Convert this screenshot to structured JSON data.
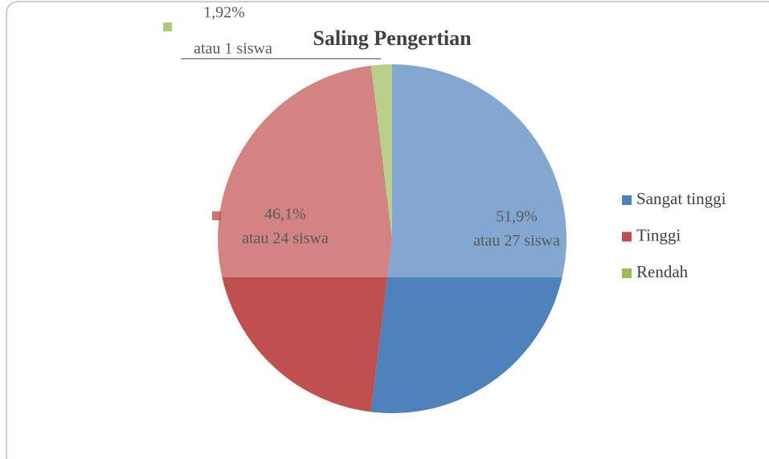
{
  "chart_data": {
    "type": "pie",
    "title": "Saling Pengertian",
    "categories": [
      "Sangat tinggi",
      "Tinggi",
      "Rendah"
    ],
    "values": [
      51.9,
      46.1,
      1.92
    ],
    "value_labels": [
      "51,9%",
      "46,1%",
      "1,92%"
    ],
    "label_notes": [
      "atau 27 siswa",
      "atau 24 siswa",
      "atau 1 siswa"
    ],
    "colors": [
      "#4f81bd",
      "#c0504d",
      "#9bbb59"
    ],
    "legend": "right"
  }
}
